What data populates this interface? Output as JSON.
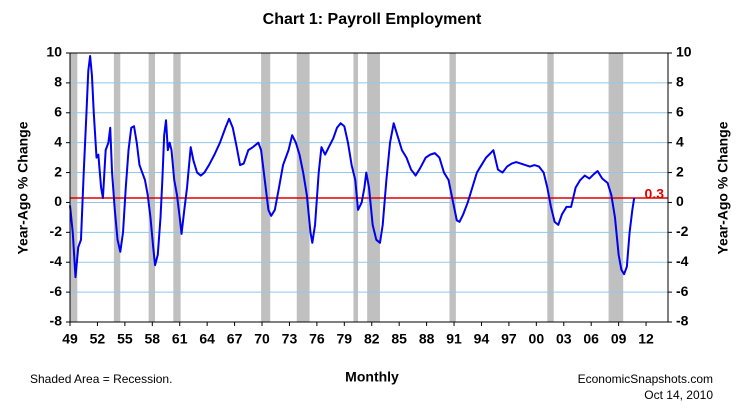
{
  "chart_data": {
    "type": "line",
    "title": "Chart 1: Payroll Employment",
    "y_label": "Year-Ago % Change",
    "y2_label": "Year-Ago % Change",
    "x_label": "Monthly",
    "footnote": "Shaded Area = Recession.",
    "source": "EconomicSnapshots.com",
    "date": "Oct 14, 2010",
    "color": "#0000ee",
    "grid": true,
    "grid_color": "#8fc8ea",
    "shade_color": "#c0c0c0",
    "xlim": [
      1949,
      2014.4
    ],
    "xticks": [
      {
        "value": 1949,
        "label": "49"
      },
      {
        "value": 1952,
        "label": "52"
      },
      {
        "value": 1955,
        "label": "55"
      },
      {
        "value": 1958,
        "label": "58"
      },
      {
        "value": 1961,
        "label": "61"
      },
      {
        "value": 1964,
        "label": "64"
      },
      {
        "value": 1967,
        "label": "67"
      },
      {
        "value": 1970,
        "label": "70"
      },
      {
        "value": 1973,
        "label": "73"
      },
      {
        "value": 1976,
        "label": "76"
      },
      {
        "value": 1979,
        "label": "79"
      },
      {
        "value": 1982,
        "label": "82"
      },
      {
        "value": 1985,
        "label": "85"
      },
      {
        "value": 1988,
        "label": "88"
      },
      {
        "value": 1991,
        "label": "91"
      },
      {
        "value": 1994,
        "label": "94"
      },
      {
        "value": 1997,
        "label": "97"
      },
      {
        "value": 2000,
        "label": "00"
      },
      {
        "value": 2003,
        "label": "03"
      },
      {
        "value": 2006,
        "label": "06"
      },
      {
        "value": 2009,
        "label": "09"
      },
      {
        "value": 2012,
        "label": "12"
      }
    ],
    "ylim": [
      -8,
      10
    ],
    "yticks": [
      -8,
      -6,
      -4,
      -2,
      0,
      2,
      4,
      6,
      8,
      10
    ],
    "y2lim": [
      -8,
      10
    ],
    "y2ticks": [
      -8,
      -6,
      -4,
      -2,
      0,
      2,
      4,
      6,
      8,
      10
    ],
    "reference_line": {
      "value": 0.3,
      "color": "#e00000"
    },
    "shaded_periods": [
      [
        1949.0,
        1949.8
      ],
      [
        1953.8,
        1954.5
      ],
      [
        1957.6,
        1958.3
      ],
      [
        1960.3,
        1961.1
      ],
      [
        1969.9,
        1970.9
      ],
      [
        1973.8,
        1975.2
      ],
      [
        1980.0,
        1980.5
      ],
      [
        1981.5,
        1982.9
      ],
      [
        1990.5,
        1991.2
      ],
      [
        2001.2,
        2001.9
      ],
      [
        2007.9,
        2009.5
      ]
    ],
    "x": [
      1949.0,
      1949.3,
      1949.6,
      1949.9,
      1950.2,
      1950.5,
      1950.8,
      1951.0,
      1951.2,
      1951.4,
      1951.6,
      1951.9,
      1952.1,
      1952.4,
      1952.6,
      1952.9,
      1953.2,
      1953.4,
      1953.6,
      1953.9,
      1954.2,
      1954.5,
      1954.8,
      1955.1,
      1955.4,
      1955.7,
      1956.0,
      1956.3,
      1956.6,
      1956.9,
      1957.2,
      1957.5,
      1957.8,
      1958.1,
      1958.3,
      1958.6,
      1958.9,
      1959.1,
      1959.3,
      1959.5,
      1959.7,
      1959.9,
      1960.1,
      1960.4,
      1960.7,
      1961.0,
      1961.2,
      1961.5,
      1961.8,
      1962.2,
      1962.5,
      1962.9,
      1963.3,
      1963.7,
      1964.2,
      1964.8,
      1965.4,
      1966.0,
      1966.4,
      1966.8,
      1967.2,
      1967.6,
      1968.0,
      1968.5,
      1969.0,
      1969.6,
      1969.9,
      1970.3,
      1970.7,
      1971.0,
      1971.4,
      1971.8,
      1972.3,
      1972.9,
      1973.3,
      1973.7,
      1974.1,
      1974.5,
      1974.9,
      1975.3,
      1975.5,
      1975.8,
      1976.2,
      1976.5,
      1976.9,
      1977.3,
      1977.8,
      1978.2,
      1978.6,
      1979.0,
      1979.4,
      1979.8,
      1980.2,
      1980.5,
      1980.9,
      1981.2,
      1981.4,
      1981.7,
      1982.1,
      1982.5,
      1982.9,
      1983.2,
      1983.6,
      1984.0,
      1984.4,
      1984.8,
      1985.3,
      1985.8,
      1986.3,
      1986.8,
      1987.3,
      1987.9,
      1988.4,
      1988.9,
      1989.4,
      1989.9,
      1990.4,
      1990.9,
      1991.3,
      1991.6,
      1992.0,
      1992.5,
      1993.0,
      1993.5,
      1994.0,
      1994.5,
      1995.0,
      1995.3,
      1995.8,
      1996.3,
      1996.8,
      1997.3,
      1997.8,
      1998.3,
      1998.8,
      1999.3,
      1999.8,
      2000.3,
      2000.8,
      2001.2,
      2001.6,
      2002.0,
      2002.4,
      2002.8,
      2003.3,
      2003.8,
      2004.3,
      2004.8,
      2005.3,
      2005.8,
      2006.3,
      2006.7,
      2007.2,
      2007.8,
      2008.2,
      2008.6,
      2009.0,
      2009.3,
      2009.6,
      2009.9,
      2010.2,
      2010.5,
      2010.7
    ],
    "values": [
      -0.2,
      -2,
      -5,
      -3,
      -2.5,
      2,
      6,
      8.8,
      9.8,
      8.5,
      6,
      3,
      3.2,
      1,
      0.3,
      3.5,
      4,
      5,
      2,
      -0.5,
      -2.5,
      -3.3,
      -2,
      1,
      3.5,
      5,
      5.1,
      4,
      2.5,
      2,
      1.5,
      0.5,
      -1,
      -3,
      -4.2,
      -3.5,
      -1,
      1.5,
      4.5,
      5.5,
      3.5,
      4,
      3.5,
      1.5,
      0.5,
      -1,
      -2.1,
      -0.5,
      1,
      3.7,
      2.8,
      2,
      1.8,
      2,
      2.5,
      3.2,
      4,
      5,
      5.6,
      5,
      3.8,
      2.5,
      2.6,
      3.5,
      3.7,
      4,
      3.5,
      1.5,
      -0.5,
      -0.9,
      -0.5,
      0.8,
      2.5,
      3.5,
      4.5,
      4,
      3.2,
      2,
      0.5,
      -2,
      -2.7,
      -1.5,
      2,
      3.7,
      3.2,
      3.7,
      4.3,
      5,
      5.3,
      5.1,
      4,
      2.5,
      1.5,
      -0.5,
      0,
      1,
      2,
      1,
      -1.5,
      -2.5,
      -2.7,
      -1.5,
      1.5,
      4,
      5.3,
      4.5,
      3.5,
      3,
      2.2,
      1.8,
      2.3,
      3,
      3.2,
      3.3,
      3,
      2,
      1.5,
      0,
      -1.2,
      -1.3,
      -0.8,
      0,
      1,
      2,
      2.5,
      3,
      3.3,
      3.5,
      2.2,
      2,
      2.4,
      2.6,
      2.7,
      2.6,
      2.5,
      2.4,
      2.5,
      2.4,
      2,
      1,
      -0.3,
      -1.3,
      -1.5,
      -0.8,
      -0.3,
      -0.3,
      1,
      1.5,
      1.8,
      1.6,
      1.9,
      2.1,
      1.6,
      1.3,
      0.5,
      -1,
      -3.5,
      -4.5,
      -4.8,
      -4.3,
      -2,
      -0.5,
      0.3
    ]
  }
}
